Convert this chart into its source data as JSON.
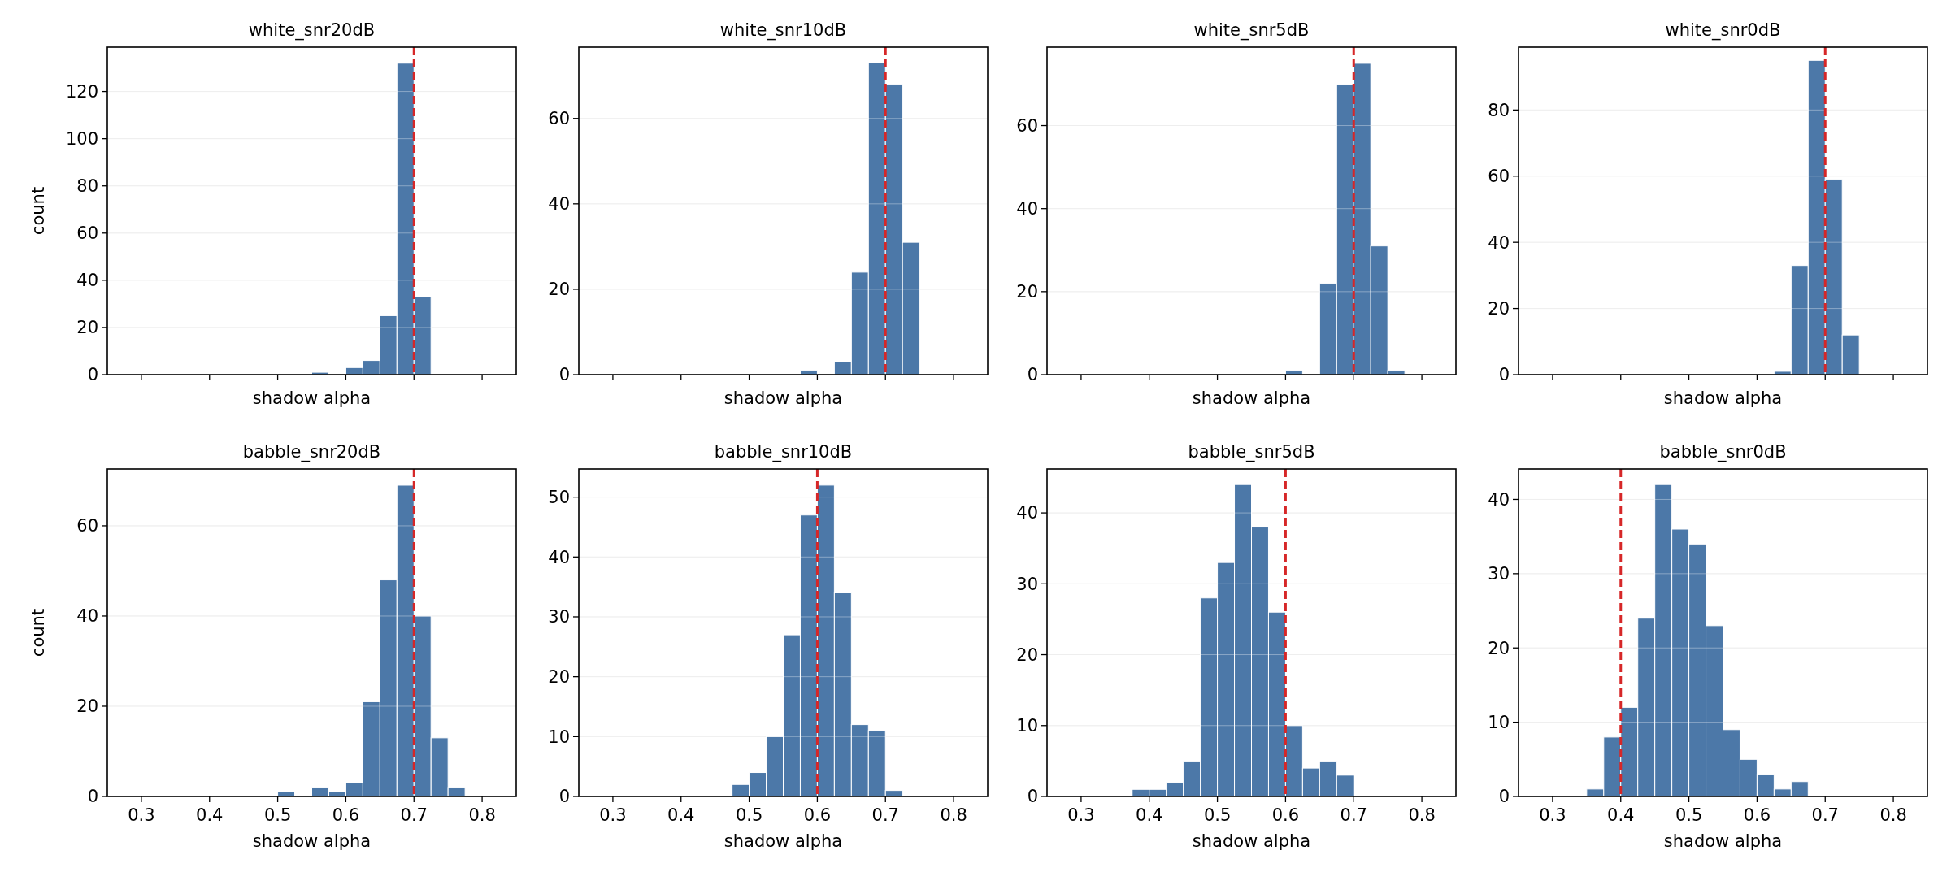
{
  "chart_data": [
    {
      "type": "histogram",
      "title": "white_snr20dB",
      "xlabel": "shadow alpha",
      "ylabel": "count",
      "bins": [
        0.3,
        0.325,
        0.35,
        0.375,
        0.4,
        0.425,
        0.45,
        0.475,
        0.5,
        0.525,
        0.55,
        0.575,
        0.6,
        0.625,
        0.65,
        0.675,
        0.7,
        0.725,
        0.75,
        0.775,
        0.8
      ],
      "values": [
        0,
        0,
        0,
        0,
        0,
        0,
        0,
        0,
        0,
        0,
        1,
        0,
        3,
        6,
        25,
        132,
        33,
        0,
        0,
        0
      ],
      "color": "#4c78a8",
      "xlim": [
        0.25,
        0.85
      ],
      "xticks": [
        0.3,
        0.4,
        0.5,
        0.6,
        0.7,
        0.8
      ],
      "ylim": [
        0,
        138.8
      ],
      "yticks": [
        0,
        20,
        40,
        60,
        80,
        100,
        120
      ],
      "grid": "y",
      "tick_labels": "y",
      "ref_lines": [
        {
          "axis": "x",
          "value": 0.7,
          "color": "#d62728",
          "line_style": "dashed"
        }
      ]
    },
    {
      "type": "histogram",
      "title": "white_snr10dB",
      "xlabel": "shadow alpha",
      "bins": [
        0.3,
        0.325,
        0.35,
        0.375,
        0.4,
        0.425,
        0.45,
        0.475,
        0.5,
        0.525,
        0.55,
        0.575,
        0.6,
        0.625,
        0.65,
        0.675,
        0.7,
        0.725,
        0.75,
        0.775,
        0.8
      ],
      "values": [
        0,
        0,
        0,
        0,
        0,
        0,
        0,
        0,
        0,
        0,
        0,
        1,
        0,
        3,
        24,
        73,
        68,
        31,
        0,
        0
      ],
      "color": "#4c78a8",
      "xlim": [
        0.25,
        0.85
      ],
      "xticks": [
        0.3,
        0.4,
        0.5,
        0.6,
        0.7,
        0.8
      ],
      "ylim": [
        0,
        76.7
      ],
      "yticks": [
        0,
        20,
        40,
        60
      ],
      "grid": "y",
      "tick_labels": "y",
      "ref_lines": [
        {
          "axis": "x",
          "value": 0.7,
          "color": "#d62728",
          "line_style": "dashed"
        }
      ]
    },
    {
      "type": "histogram",
      "title": "white_snr5dB",
      "xlabel": "shadow alpha",
      "bins": [
        0.3,
        0.325,
        0.35,
        0.375,
        0.4,
        0.425,
        0.45,
        0.475,
        0.5,
        0.525,
        0.55,
        0.575,
        0.6,
        0.625,
        0.65,
        0.675,
        0.7,
        0.725,
        0.75,
        0.775,
        0.8
      ],
      "values": [
        0,
        0,
        0,
        0,
        0,
        0,
        0,
        0,
        0,
        0,
        0,
        0,
        1,
        0,
        22,
        70,
        75,
        31,
        1,
        0
      ],
      "color": "#4c78a8",
      "xlim": [
        0.25,
        0.85
      ],
      "xticks": [
        0.3,
        0.4,
        0.5,
        0.6,
        0.7,
        0.8
      ],
      "ylim": [
        0,
        78.9
      ],
      "yticks": [
        0,
        20,
        40,
        60
      ],
      "grid": "y",
      "tick_labels": "y",
      "ref_lines": [
        {
          "axis": "x",
          "value": 0.7,
          "color": "#d62728",
          "line_style": "dashed"
        }
      ]
    },
    {
      "type": "histogram",
      "title": "white_snr0dB",
      "xlabel": "shadow alpha",
      "bins": [
        0.3,
        0.325,
        0.35,
        0.375,
        0.4,
        0.425,
        0.45,
        0.475,
        0.5,
        0.525,
        0.55,
        0.575,
        0.6,
        0.625,
        0.65,
        0.675,
        0.7,
        0.725,
        0.75,
        0.775,
        0.8
      ],
      "values": [
        0,
        0,
        0,
        0,
        0,
        0,
        0,
        0,
        0,
        0,
        0,
        0,
        0,
        1,
        33,
        95,
        59,
        12,
        0,
        0
      ],
      "color": "#4c78a8",
      "xlim": [
        0.25,
        0.85
      ],
      "xticks": [
        0.3,
        0.4,
        0.5,
        0.6,
        0.7,
        0.8
      ],
      "ylim": [
        0,
        99
      ],
      "yticks": [
        0,
        20,
        40,
        60,
        80
      ],
      "grid": "y",
      "tick_labels": "y",
      "ref_lines": [
        {
          "axis": "x",
          "value": 0.7,
          "color": "#d62728",
          "line_style": "dashed"
        }
      ]
    },
    {
      "type": "histogram",
      "title": "babble_snr20dB",
      "xlabel": "shadow alpha",
      "ylabel": "count",
      "bins": [
        0.3,
        0.325,
        0.35,
        0.375,
        0.4,
        0.425,
        0.45,
        0.475,
        0.5,
        0.525,
        0.55,
        0.575,
        0.6,
        0.625,
        0.65,
        0.675,
        0.7,
        0.725,
        0.75,
        0.775,
        0.8
      ],
      "values": [
        0,
        0,
        0,
        0,
        0,
        0,
        0,
        0,
        1,
        0,
        2,
        1,
        3,
        21,
        48,
        69,
        40,
        13,
        2,
        0
      ],
      "color": "#4c78a8",
      "xlim": [
        0.25,
        0.85
      ],
      "xticks": [
        0.3,
        0.4,
        0.5,
        0.6,
        0.7,
        0.8
      ],
      "ylim": [
        0,
        72.6
      ],
      "yticks": [
        0,
        20,
        40,
        60
      ],
      "grid": "y",
      "ref_lines": [
        {
          "axis": "x",
          "value": 0.7,
          "color": "#d62728",
          "line_style": "dashed"
        }
      ]
    },
    {
      "type": "histogram",
      "title": "babble_snr10dB",
      "xlabel": "shadow alpha",
      "bins": [
        0.3,
        0.325,
        0.35,
        0.375,
        0.4,
        0.425,
        0.45,
        0.475,
        0.5,
        0.525,
        0.55,
        0.575,
        0.6,
        0.625,
        0.65,
        0.675,
        0.7,
        0.725,
        0.75,
        0.775,
        0.8
      ],
      "values": [
        0,
        0,
        0,
        0,
        0,
        0,
        0,
        2,
        4,
        10,
        27,
        47,
        52,
        34,
        12,
        11,
        1,
        0,
        0,
        0
      ],
      "color": "#4c78a8",
      "xlim": [
        0.25,
        0.85
      ],
      "xticks": [
        0.3,
        0.4,
        0.5,
        0.6,
        0.7,
        0.8
      ],
      "ylim": [
        0,
        54.7
      ],
      "yticks": [
        0,
        10,
        20,
        30,
        40,
        50
      ],
      "grid": "y",
      "ref_lines": [
        {
          "axis": "x",
          "value": 0.6,
          "color": "#d62728",
          "line_style": "dashed"
        }
      ]
    },
    {
      "type": "histogram",
      "title": "babble_snr5dB",
      "xlabel": "shadow alpha",
      "bins": [
        0.3,
        0.325,
        0.35,
        0.375,
        0.4,
        0.425,
        0.45,
        0.475,
        0.5,
        0.525,
        0.55,
        0.575,
        0.6,
        0.625,
        0.65,
        0.675,
        0.7,
        0.725,
        0.75,
        0.775,
        0.8
      ],
      "values": [
        0,
        0,
        0,
        1,
        1,
        2,
        5,
        28,
        33,
        44,
        38,
        26,
        10,
        4,
        5,
        3,
        0,
        0,
        0,
        0
      ],
      "color": "#4c78a8",
      "xlim": [
        0.25,
        0.85
      ],
      "xticks": [
        0.3,
        0.4,
        0.5,
        0.6,
        0.7,
        0.8
      ],
      "ylim": [
        0,
        46.2
      ],
      "yticks": [
        0,
        10,
        20,
        30,
        40
      ],
      "grid": "y",
      "ref_lines": [
        {
          "axis": "x",
          "value": 0.6,
          "color": "#d62728",
          "line_style": "dashed"
        }
      ]
    },
    {
      "type": "histogram",
      "title": "babble_snr0dB",
      "xlabel": "shadow alpha",
      "bins": [
        0.3,
        0.325,
        0.35,
        0.375,
        0.4,
        0.425,
        0.45,
        0.475,
        0.5,
        0.525,
        0.55,
        0.575,
        0.6,
        0.625,
        0.65,
        0.675,
        0.7,
        0.725,
        0.75,
        0.775,
        0.8
      ],
      "values": [
        0,
        0,
        1,
        8,
        12,
        24,
        42,
        36,
        34,
        23,
        9,
        5,
        3,
        1,
        2,
        0,
        0,
        0,
        0,
        0
      ],
      "color": "#4c78a8",
      "xlim": [
        0.25,
        0.85
      ],
      "xticks": [
        0.3,
        0.4,
        0.5,
        0.6,
        0.7,
        0.8
      ],
      "ylim": [
        0,
        44.1
      ],
      "yticks": [
        0,
        10,
        20,
        30,
        40
      ],
      "grid": "y",
      "ref_lines": [
        {
          "axis": "x",
          "value": 0.4,
          "color": "#d62728",
          "line_style": "dashed"
        }
      ]
    }
  ]
}
